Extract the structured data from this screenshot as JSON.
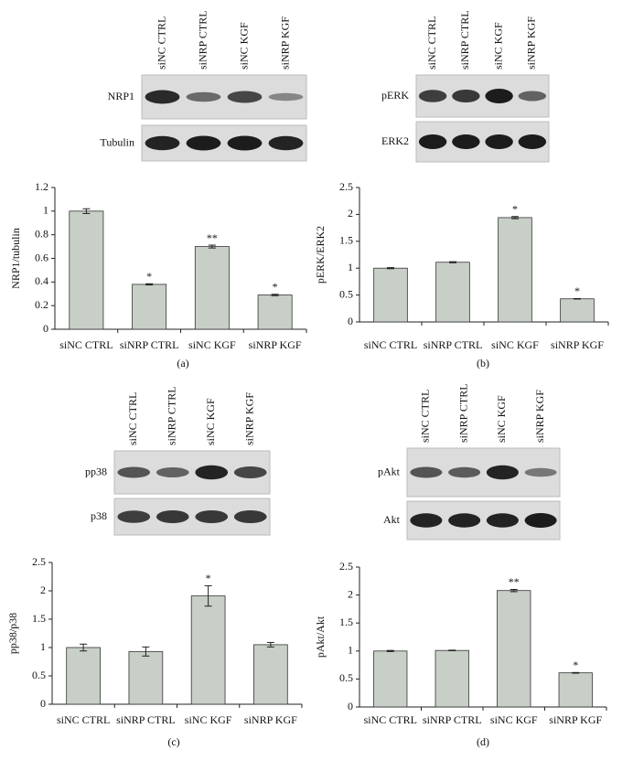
{
  "chart_data": [
    {
      "type": "bar",
      "panel_label": "(a)",
      "blot_lanes": [
        "siNC CTRL",
        "siNRP CTRL",
        "siNC KGF",
        "siNRP KGF"
      ],
      "blot_rows": [
        "NRP1",
        "Tubulin"
      ],
      "ylabel": "NRP1/tubulin",
      "categories": [
        "siNC CTRL",
        "siNRP CTRL",
        "siNC KGF",
        "siNRP KGF"
      ],
      "values": [
        1.0,
        0.38,
        0.7,
        0.29
      ],
      "errors": [
        0.02,
        0.005,
        0.012,
        0.006
      ],
      "annotations": [
        null,
        "*",
        "**",
        "*"
      ],
      "color": "#c7cfc7",
      "ylim": [
        0,
        1.2
      ],
      "yticks": [
        0,
        0.2,
        0.4,
        0.6,
        0.8,
        1,
        1.2
      ]
    },
    {
      "type": "bar",
      "panel_label": "(b)",
      "blot_lanes": [
        "siNC CTRL",
        "siNRP CTRL",
        "siNC KGF",
        "siNRP KGF"
      ],
      "blot_rows": [
        "pERK",
        "ERK2"
      ],
      "ylabel": "pERK/ERK2",
      "categories": [
        "siNC CTRL",
        "siNRP CTRL",
        "siNC KGF",
        "siNRP KGF"
      ],
      "values": [
        1.0,
        1.11,
        1.94,
        0.43
      ],
      "errors": [
        0.01,
        0.01,
        0.02,
        0.005
      ],
      "annotations": [
        null,
        null,
        "*",
        "*"
      ],
      "color": "#c7cfc7",
      "ylim": [
        0,
        2.5
      ],
      "yticks": [
        0,
        0.5,
        1,
        1.5,
        2,
        2.5
      ]
    },
    {
      "type": "bar",
      "panel_label": "(c)",
      "blot_lanes": [
        "siNC CTRL",
        "siNRP CTRL",
        "siNC KGF",
        "siNRP KGF"
      ],
      "blot_rows": [
        "pp38",
        "p38"
      ],
      "ylabel": "pp38/p38",
      "categories": [
        "siNC CTRL",
        "siNRP CTRL",
        "siNC KGF",
        "siNRP KGF"
      ],
      "values": [
        1.0,
        0.93,
        1.91,
        1.05
      ],
      "errors": [
        0.06,
        0.08,
        0.18,
        0.04
      ],
      "annotations": [
        null,
        null,
        "*",
        null
      ],
      "color": "#c7cfc7",
      "ylim": [
        0,
        2.5
      ],
      "yticks": [
        0,
        0.5,
        1,
        1.5,
        2,
        2.5
      ]
    },
    {
      "type": "bar",
      "panel_label": "(d)",
      "blot_lanes": [
        "siNC CTRL",
        "siNRP CTRL",
        "siNC KGF",
        "siNRP KGF"
      ],
      "blot_rows": [
        "pAkt",
        "Akt"
      ],
      "ylabel": "pAkt/Akt",
      "categories": [
        "siNC CTRL",
        "siNRP CTRL",
        "siNC KGF",
        "siNRP KGF"
      ],
      "values": [
        1.0,
        1.01,
        2.08,
        0.61
      ],
      "errors": [
        0.01,
        0.005,
        0.02,
        0.006
      ],
      "annotations": [
        null,
        null,
        "**",
        "*"
      ],
      "color": "#c7cfc7",
      "ylim": [
        0,
        2.5
      ],
      "yticks": [
        0,
        0.5,
        1,
        1.5,
        2,
        2.5
      ]
    }
  ]
}
